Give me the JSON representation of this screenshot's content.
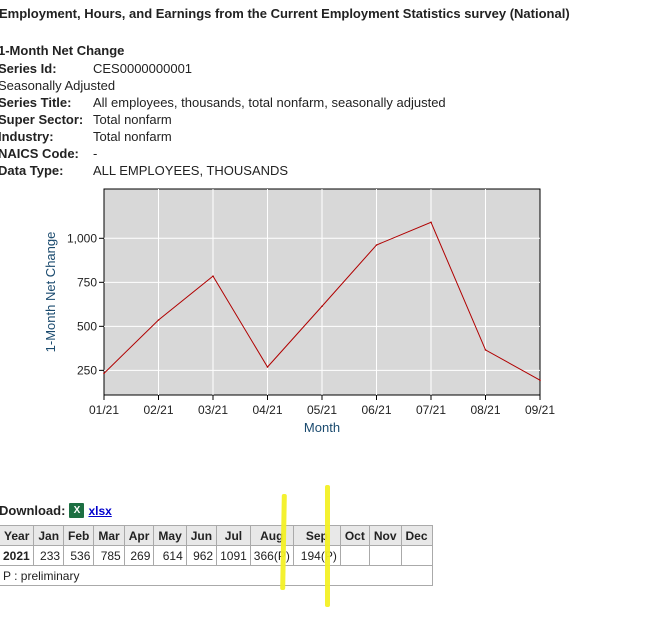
{
  "page": {
    "title": "Employment, Hours, and Earnings from the Current Employment Statistics survey (National)",
    "subtitle": "1-Month Net Change"
  },
  "meta": [
    {
      "label": "Series Id:",
      "value": "CES0000000001"
    },
    {
      "label": "Seasonally Adjusted",
      "value": ""
    },
    {
      "label": "Series Title:",
      "value": "All employees, thousands, total nonfarm, seasonally adjusted"
    },
    {
      "label": "Super Sector:",
      "value": "Total nonfarm"
    },
    {
      "label": "Industry:",
      "value": "Total nonfarm"
    },
    {
      "label": "NAICS Code:",
      "value": "-"
    },
    {
      "label": "Data Type:",
      "value": "ALL EMPLOYEES, THOUSANDS"
    }
  ],
  "chart_data": {
    "type": "line",
    "xlabel": "Month",
    "ylabel": "1-Month Net Change",
    "categories": [
      "01/21",
      "02/21",
      "03/21",
      "04/21",
      "05/21",
      "06/21",
      "07/21",
      "08/21",
      "09/21"
    ],
    "values": [
      233,
      536,
      785,
      269,
      614,
      962,
      1091,
      366,
      194
    ],
    "yticks": [
      250,
      500,
      750,
      1000
    ],
    "ytick_labels": [
      "250",
      "500",
      "750",
      "1,000"
    ],
    "ylim": [
      110,
      1280
    ],
    "grid": true,
    "line_color": "#b00000",
    "plot_bg": "#d8d8d8"
  },
  "download": {
    "label": "Download:",
    "icon": "excel-icon",
    "link": "xlsx"
  },
  "table": {
    "headers": [
      "Year",
      "Jan",
      "Feb",
      "Mar",
      "Apr",
      "May",
      "Jun",
      "Jul",
      "Aug",
      "Sep",
      "Oct",
      "Nov",
      "Dec"
    ],
    "row": [
      "2021",
      "233",
      "536",
      "785",
      "269",
      "614",
      "962",
      "1091",
      "366(P)",
      "194(P)",
      "",
      "",
      ""
    ],
    "footnote": "P : preliminary"
  }
}
